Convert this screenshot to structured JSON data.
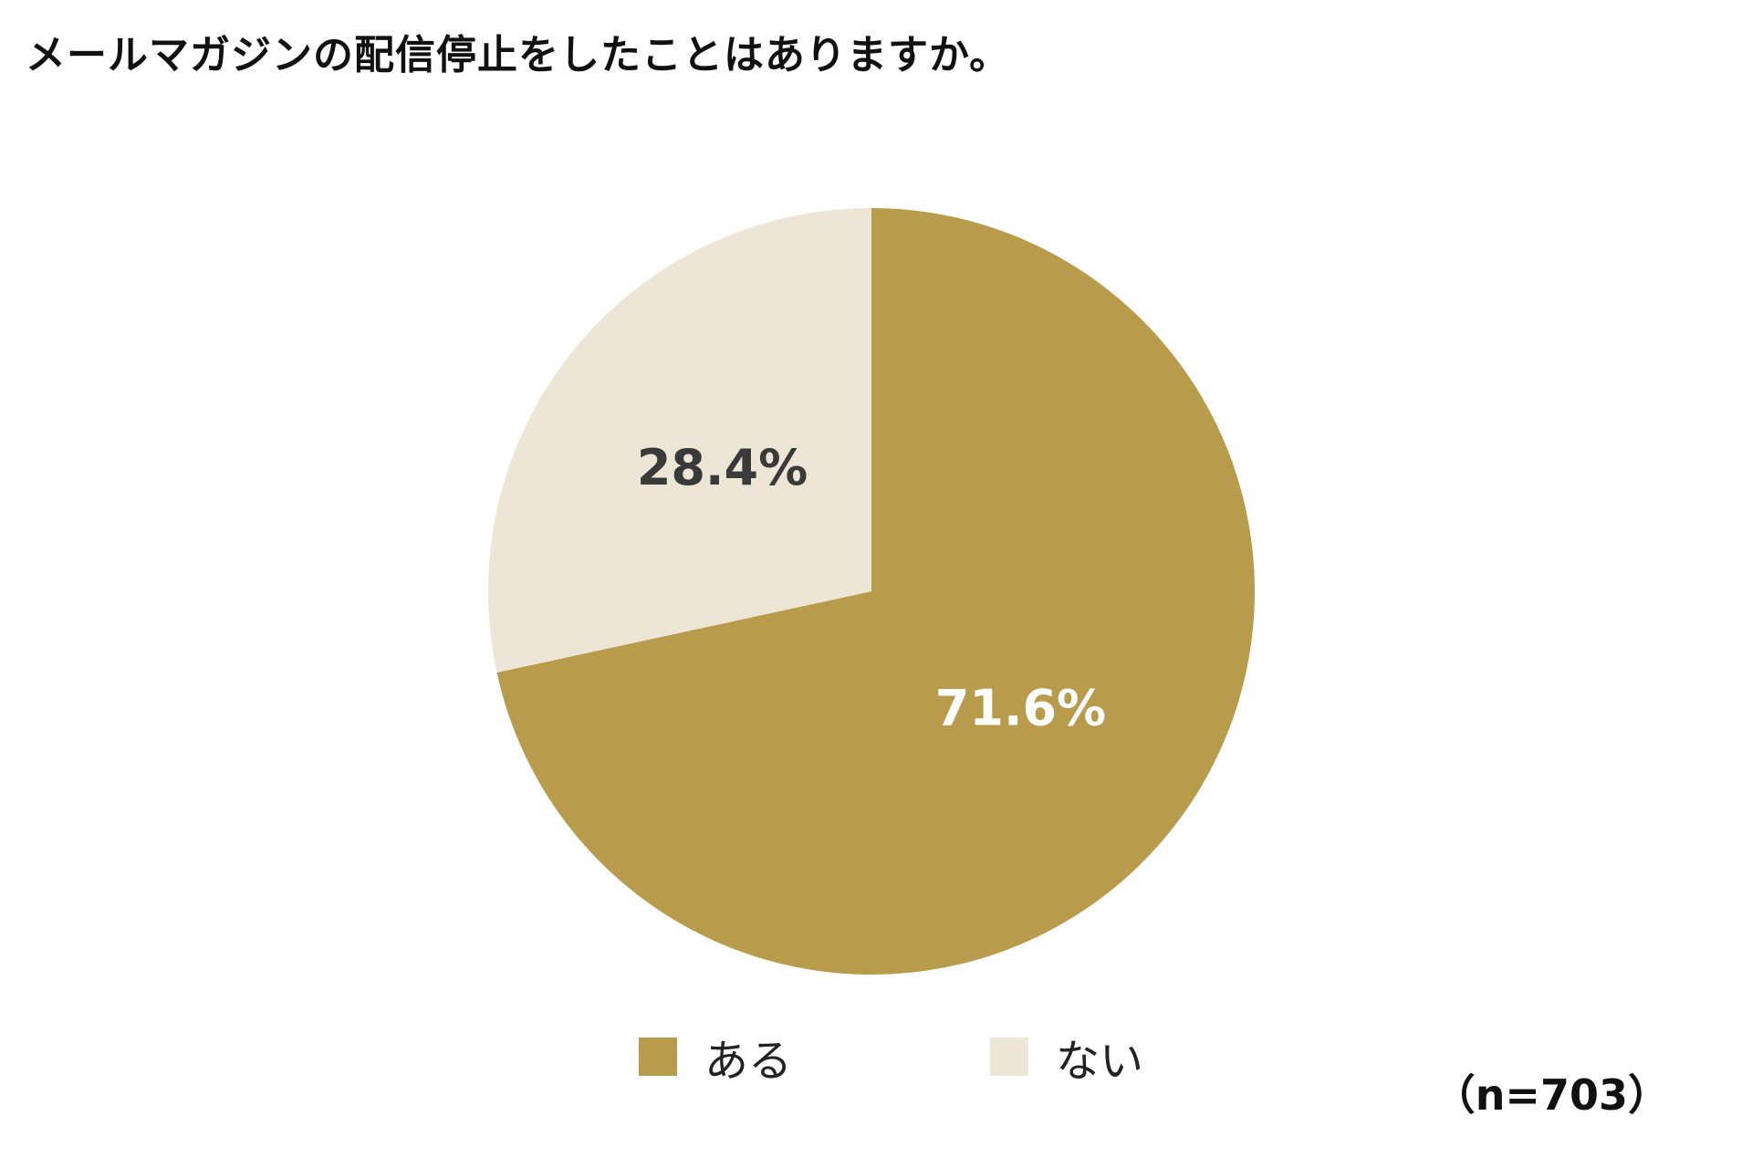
{
  "chart_data": {
    "type": "pie",
    "title": "メールマガジンの配信停止をしたことはありますか。",
    "slices": [
      {
        "label": "ある",
        "value": 71.6,
        "display": "71.6%",
        "color": "#b89c4c",
        "label_color": "#ffffff"
      },
      {
        "label": "ない",
        "value": 28.4,
        "display": "28.4%",
        "color": "#ede6d6",
        "label_color": "#3a3a3a"
      }
    ],
    "start_angle_deg": 0,
    "direction": "clockwise",
    "legend_position": "bottom",
    "sample_size": "（n=703）"
  }
}
